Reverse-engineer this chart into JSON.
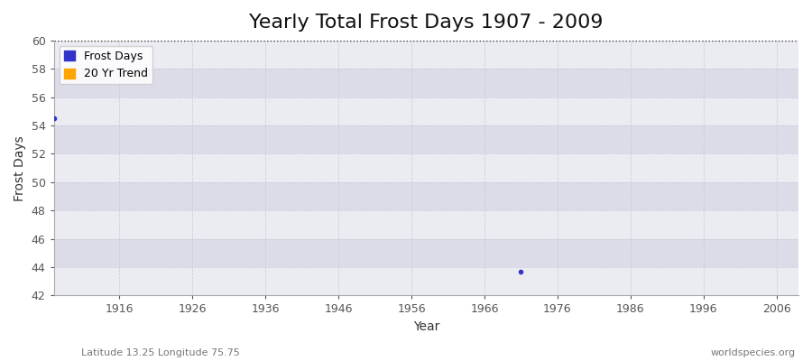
{
  "title": "Yearly Total Frost Days 1907 - 2009",
  "xlabel": "Year",
  "ylabel": "Frost Days",
  "subtitle_left": "Latitude 13.25 Longitude 75.75",
  "subtitle_right": "worldspecies.org",
  "xlim": [
    1907,
    2009
  ],
  "ylim": [
    42,
    60
  ],
  "yticks": [
    42,
    44,
    46,
    48,
    50,
    52,
    54,
    56,
    58,
    60
  ],
  "xticks": [
    1916,
    1926,
    1936,
    1946,
    1956,
    1966,
    1976,
    1986,
    1996,
    2006
  ],
  "data_points": [
    {
      "year": 1907,
      "value": 54.5
    },
    {
      "year": 1971,
      "value": 43.7
    }
  ],
  "hline_y": 60,
  "hline_color": "#333333",
  "point_color": "#3333cc",
  "trend_color": "#FFA500",
  "bg_color": "#ffffff",
  "plot_bg_color": "#f0f0f5",
  "band_light": "#ebebf2",
  "band_dark": "#dcdce8",
  "grid_color": "#c8c8d8",
  "legend_frost_label": "Frost Days",
  "legend_trend_label": "20 Yr Trend",
  "title_fontsize": 16,
  "axis_label_fontsize": 10,
  "tick_fontsize": 9,
  "subtitle_fontsize": 8
}
